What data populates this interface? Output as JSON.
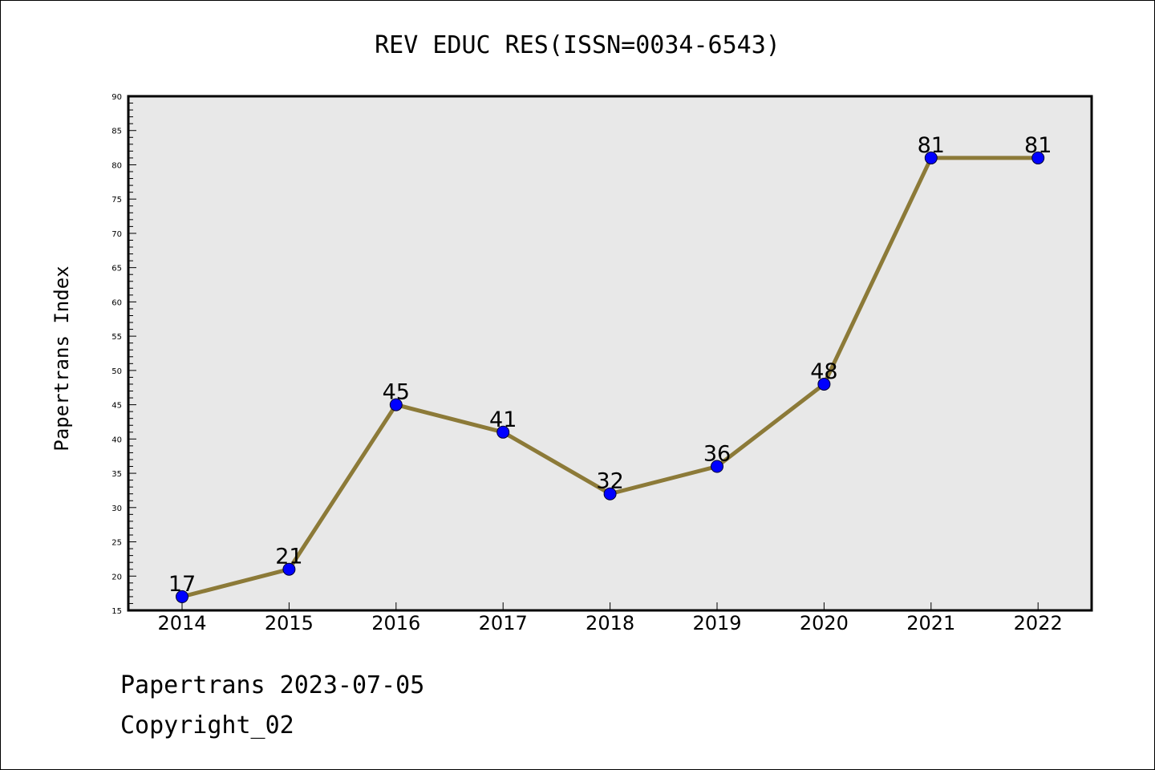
{
  "chart_data": {
    "type": "line",
    "title": "REV EDUC RES(ISSN=0034-6543)",
    "xlabel": "",
    "ylabel": "Papertrans Index",
    "categories": [
      "2014",
      "2015",
      "2016",
      "2017",
      "2018",
      "2019",
      "2020",
      "2021",
      "2022"
    ],
    "series": [
      {
        "values": [
          17,
          21,
          45,
          41,
          32,
          36,
          48,
          81,
          81
        ]
      }
    ],
    "ylim": [
      15,
      90
    ],
    "y_major_ticks": [
      15,
      20,
      25,
      30,
      35,
      40,
      45,
      50,
      55,
      60,
      65,
      70,
      75,
      80,
      85,
      90
    ],
    "y_minor_step": 1,
    "data_labels": true,
    "grid": false,
    "legend": "none",
    "colors": {
      "line": "#8c7a38",
      "marker": "#0000ff",
      "marker_edge": "#000033",
      "plot_background": "#e8e8e8",
      "frame": "#000000"
    }
  },
  "footer": {
    "line1": "Papertrans 2023-07-05",
    "line2": "Copyright_02"
  }
}
